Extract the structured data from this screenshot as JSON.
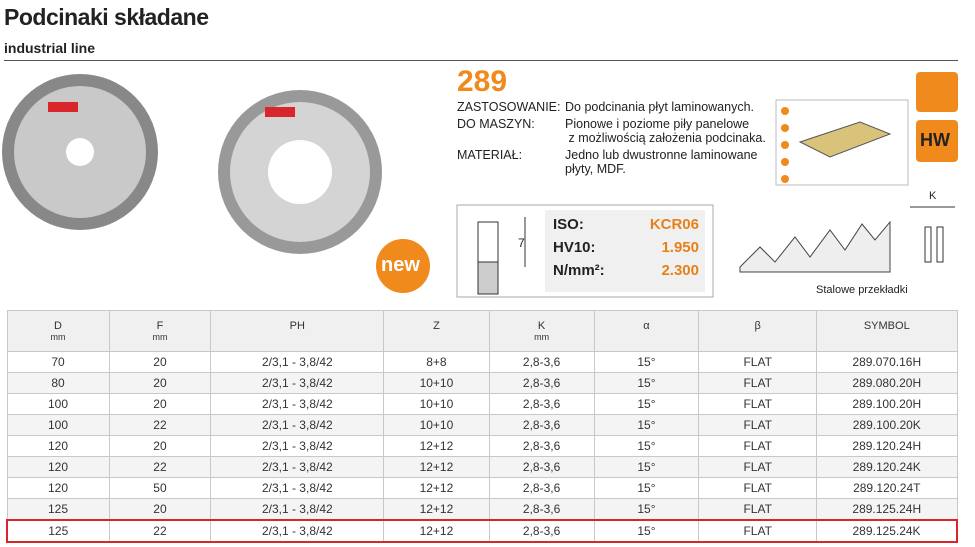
{
  "header": {
    "title": "Podcinaki składane",
    "subtitle": "industrial line"
  },
  "product": {
    "code": "289",
    "badge": "new",
    "material_badge": "HW",
    "specs": [
      [
        "ZASTOSOWANIE:",
        "Do podcinania płyt laminowanych."
      ],
      [
        "DO MASZYN:",
        "Pionowe i poziome piły panelowe\n z możliwością założenia podcinaka."
      ],
      [
        "MATERIAŁ:",
        "Jedno lub dwustronne laminowane\npłyty, MDF."
      ]
    ],
    "material": {
      "dimension": "7",
      "rows": [
        [
          "ISO:",
          "KCR06"
        ],
        [
          "HV10:",
          "1.950"
        ],
        [
          "N/mm²:",
          "2.300"
        ]
      ]
    },
    "diagram": {
      "dimension": "K",
      "caption": "Stalowe przekładki"
    }
  },
  "table": {
    "columns": [
      [
        "D",
        "mm"
      ],
      [
        "F",
        "mm"
      ],
      [
        "PH",
        ""
      ],
      [
        "Z",
        ""
      ],
      [
        "K",
        "mm"
      ],
      [
        "α",
        ""
      ],
      [
        "β",
        ""
      ],
      [
        "SYMBOL",
        ""
      ]
    ],
    "rows": [
      [
        "70",
        "20",
        "2/3,1 - 3,8/42",
        "8+8",
        "2,8-3,6",
        "15°",
        "FLAT",
        "289.070.16H"
      ],
      [
        "80",
        "20",
        "2/3,1 - 3,8/42",
        "10+10",
        "2,8-3,6",
        "15°",
        "FLAT",
        "289.080.20H"
      ],
      [
        "100",
        "20",
        "2/3,1 - 3,8/42",
        "10+10",
        "2,8-3,6",
        "15°",
        "FLAT",
        "289.100.20H"
      ],
      [
        "100",
        "22",
        "2/3,1 - 3,8/42",
        "10+10",
        "2,8-3,6",
        "15°",
        "FLAT",
        "289.100.20K"
      ],
      [
        "120",
        "20",
        "2/3,1 - 3,8/42",
        "12+12",
        "2,8-3,6",
        "15°",
        "FLAT",
        "289.120.24H"
      ],
      [
        "120",
        "22",
        "2/3,1 - 3,8/42",
        "12+12",
        "2,8-3,6",
        "15°",
        "FLAT",
        "289.120.24K"
      ],
      [
        "120",
        "50",
        "2/3,1 - 3,8/42",
        "12+12",
        "2,8-3,6",
        "15°",
        "FLAT",
        "289.120.24T"
      ],
      [
        "125",
        "20",
        "2/3,1 - 3,8/42",
        "12+12",
        "2,8-3,6",
        "15°",
        "FLAT",
        "289.125.24H"
      ],
      [
        "125",
        "22",
        "2/3,1 - 3,8/42",
        "12+12",
        "2,8-3,6",
        "15°",
        "FLAT",
        "289.125.24K"
      ]
    ]
  }
}
